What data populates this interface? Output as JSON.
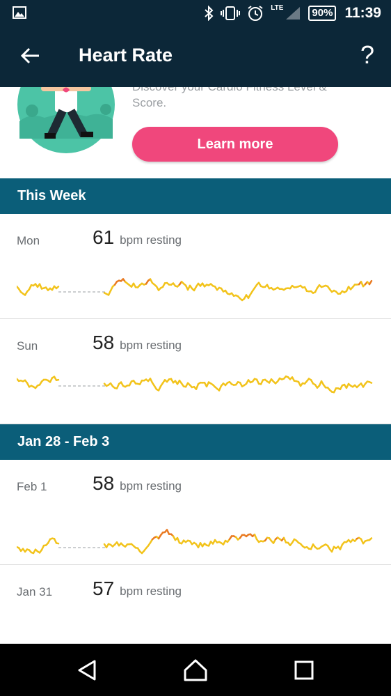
{
  "status": {
    "network": "LTE",
    "battery": "90%",
    "time": "11:39"
  },
  "header": {
    "title": "Heart Rate"
  },
  "promo": {
    "text": "Discover your Cardio Fitness Level & Score.",
    "button": "Learn more"
  },
  "sections": [
    {
      "title": "This Week",
      "days": [
        {
          "day": "Mon",
          "bpm": "61",
          "unit": "bpm resting"
        },
        {
          "day": "Sun",
          "bpm": "58",
          "unit": "bpm resting"
        }
      ]
    },
    {
      "title": "Jan 28 - Feb 3",
      "days": [
        {
          "day": "Feb 1",
          "bpm": "58",
          "unit": "bpm resting"
        },
        {
          "day": "Jan 31",
          "bpm": "57",
          "unit": "bpm resting"
        }
      ]
    }
  ],
  "colors": {
    "header": "#0c2738",
    "section": "#0b5e79",
    "accent_pink": "#f0477c",
    "chart_yellow": "#f2c31b",
    "chart_orange": "#e97a22"
  },
  "icons": [
    "image-icon",
    "bluetooth-icon",
    "vibrate-icon",
    "alarm-icon",
    "signal-icon",
    "back-arrow-icon",
    "help-icon",
    "nav-back-icon",
    "nav-home-icon",
    "nav-recents-icon"
  ]
}
